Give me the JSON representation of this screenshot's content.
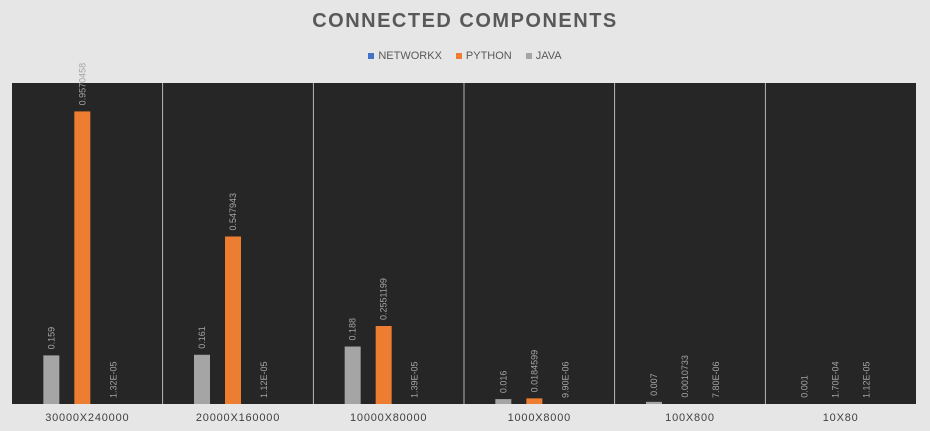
{
  "chart_data": {
    "type": "bar",
    "title": "CONNECTED COMPONENTS",
    "categories": [
      "30000X240000",
      "20000X160000",
      "10000X80000",
      "1000X8000",
      "100X800",
      "10X80"
    ],
    "series": [
      {
        "name": "NETWORKX",
        "color": "#4472c4",
        "values": [
          null,
          null,
          null,
          null,
          null,
          null
        ],
        "labels": [
          "",
          "",
          "",
          "",
          "",
          ""
        ]
      },
      {
        "name": "JAVA",
        "color": "#a5a5a5",
        "values": [
          0.159,
          0.161,
          0.188,
          0.016,
          0.007,
          0.001
        ],
        "labels": [
          "0.159",
          "0.161",
          "0.188",
          "0.016",
          "0.007",
          "0.001"
        ]
      },
      {
        "name": "PYTHON",
        "color": "#ed7d31",
        "values": [
          0.9570458,
          0.547943,
          0.2551199,
          0.0184599,
          0.0010733,
          0.00017
        ],
        "labels": [
          "0.9570458",
          "0.547943",
          "0.2551199",
          "0.0184599",
          "0.0010733",
          "1.70E-04"
        ]
      },
      {
        "name": "",
        "color": "#ed7d31",
        "values": [
          1.32e-05,
          1.12e-05,
          1.39e-05,
          9.9e-06,
          7.8e-06,
          1.12e-05
        ],
        "labels": [
          "1.32E-05",
          "1.12E-05",
          "1.39E-05",
          "9.90E-06",
          "7.80E-06",
          "1.12E-05"
        ]
      }
    ],
    "legend": [
      {
        "name": "NETWORKX",
        "color": "#4472c4"
      },
      {
        "name": "PYTHON",
        "color": "#ed7d31"
      },
      {
        "name": "JAVA",
        "color": "#a5a5a5"
      }
    ],
    "legend_position": "top",
    "ylim": [
      0,
      1.05
    ],
    "grid": false,
    "plot_background": "#262626",
    "label_color": "#a5a5a5"
  }
}
